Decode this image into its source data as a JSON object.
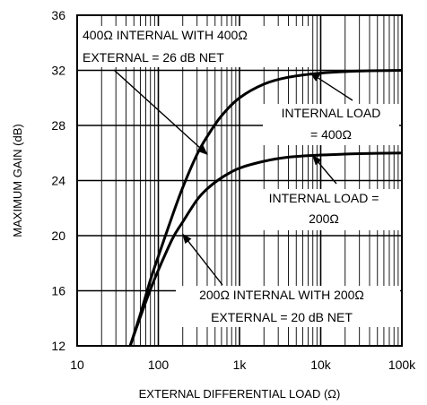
{
  "chart_data": {
    "type": "line",
    "title": "",
    "xlabel": "EXTERNAL DIFFERENTIAL LOAD (Ω)",
    "ylabel": "MAXIMUM GAIN (dB)",
    "xscale": "log",
    "xlim": [
      10,
      100000
    ],
    "ylim": [
      12,
      36
    ],
    "grid": true,
    "x_ticks": [
      {
        "value": 10,
        "label": "10"
      },
      {
        "value": 100,
        "label": "100"
      },
      {
        "value": 1000,
        "label": "1k"
      },
      {
        "value": 10000,
        "label": "10k"
      },
      {
        "value": 100000,
        "label": "100k"
      }
    ],
    "y_ticks": [
      {
        "value": 12,
        "label": "12"
      },
      {
        "value": 16,
        "label": "16"
      },
      {
        "value": 20,
        "label": "20"
      },
      {
        "value": 24,
        "label": "24"
      },
      {
        "value": 28,
        "label": "28"
      },
      {
        "value": 32,
        "label": "32"
      },
      {
        "value": 36,
        "label": "36"
      }
    ],
    "series": [
      {
        "name": "INTERNAL LOAD = 400Ω",
        "x": [
          45,
          60,
          80,
          100,
          150,
          200,
          300,
          400,
          600,
          1000,
          2000,
          4000,
          10000,
          30000,
          100000
        ],
        "y": [
          12,
          14.3,
          16.8,
          18.5,
          21.5,
          23.5,
          25.9,
          27.2,
          28.7,
          30.0,
          31.0,
          31.5,
          31.8,
          31.95,
          32
        ]
      },
      {
        "name": "INTERNAL LOAD = 200Ω",
        "x": [
          45,
          60,
          80,
          100,
          150,
          200,
          300,
          400,
          600,
          1000,
          2000,
          4000,
          10000,
          30000,
          100000
        ],
        "y": [
          12,
          14.1,
          16.1,
          17.5,
          19.8,
          21.0,
          22.6,
          23.4,
          24.2,
          24.9,
          25.4,
          25.7,
          25.85,
          25.95,
          26
        ]
      }
    ],
    "annotations": [
      {
        "id": "a400net",
        "lines": [
          "400Ω INTERNAL WITH 400Ω",
          "EXTERNAL = 26 dB NET"
        ],
        "arrow_to": {
          "x": 400,
          "y": 25.9
        }
      },
      {
        "id": "a400int",
        "lines": [
          "INTERNAL LOAD",
          "= 400Ω"
        ],
        "arrow_to": {
          "x": 7500,
          "y": 31.8
        }
      },
      {
        "id": "a200int",
        "lines": [
          "INTERNAL LOAD =",
          "200Ω"
        ],
        "arrow_to": {
          "x": 8000,
          "y": 25.8
        }
      },
      {
        "id": "a200net",
        "lines": [
          "200Ω INTERNAL WITH 200Ω",
          "EXTERNAL = 20 dB NET"
        ],
        "arrow_to": {
          "x": 200,
          "y": 20.1
        }
      }
    ]
  }
}
